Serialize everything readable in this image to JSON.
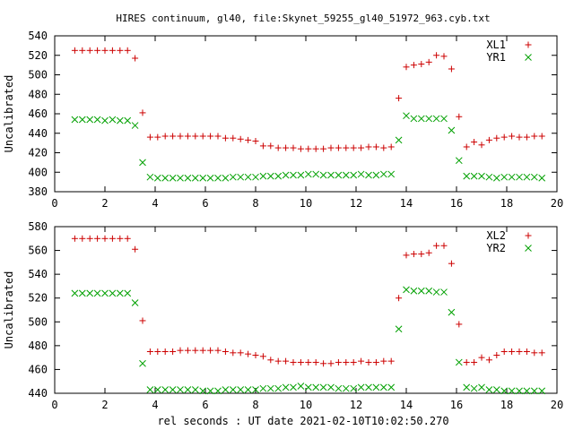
{
  "chart_data": [
    {
      "type": "scatter",
      "title": "HIRES continuum, gl40, file:Skynet_59255_gl40_51972_963.cyb.txt",
      "xlabel": "",
      "ylabel": "Uncalibrated",
      "xlim": [
        0,
        20
      ],
      "ylim": [
        380,
        540
      ],
      "xticks": [
        0,
        2,
        4,
        6,
        8,
        10,
        12,
        14,
        16,
        18,
        20
      ],
      "yticks": [
        380,
        400,
        420,
        440,
        460,
        480,
        500,
        520,
        540
      ],
      "legend": "top-right",
      "series": [
        {
          "name": "XL1",
          "marker": "plus",
          "color": "#cc0000",
          "x": [
            0.8,
            1.1,
            1.4,
            1.7,
            2.0,
            2.3,
            2.6,
            2.9,
            3.2,
            3.5,
            3.8,
            4.1,
            4.4,
            4.7,
            5.0,
            5.3,
            5.6,
            5.9,
            6.2,
            6.5,
            6.8,
            7.1,
            7.4,
            7.7,
            8.0,
            8.3,
            8.6,
            8.9,
            9.2,
            9.5,
            9.8,
            10.1,
            10.4,
            10.7,
            11.0,
            11.3,
            11.6,
            11.9,
            12.2,
            12.5,
            12.8,
            13.1,
            13.4,
            13.7,
            14.0,
            14.3,
            14.6,
            14.9,
            15.2,
            15.5,
            15.8,
            16.1,
            16.4,
            16.7,
            17.0,
            17.3,
            17.6,
            17.9,
            18.2,
            18.5,
            18.8,
            19.1,
            19.4
          ],
          "y": [
            525,
            525,
            525,
            525,
            525,
            525,
            525,
            525,
            517,
            461,
            436,
            436,
            437,
            437,
            437,
            437,
            437,
            437,
            437,
            437,
            435,
            435,
            434,
            433,
            432,
            427,
            427,
            425,
            425,
            425,
            424,
            424,
            424,
            424,
            425,
            425,
            425,
            425,
            425,
            426,
            426,
            425,
            426,
            476,
            508,
            510,
            511,
            513,
            520,
            519,
            506,
            457,
            426,
            431,
            428,
            433,
            435,
            436,
            437,
            436,
            436,
            437,
            437
          ]
        },
        {
          "name": "YR1",
          "marker": "cross",
          "color": "#00a000",
          "x": [
            0.8,
            1.1,
            1.4,
            1.7,
            2.0,
            2.3,
            2.6,
            2.9,
            3.2,
            3.5,
            3.8,
            4.1,
            4.4,
            4.7,
            5.0,
            5.3,
            5.6,
            5.9,
            6.2,
            6.5,
            6.8,
            7.1,
            7.4,
            7.7,
            8.0,
            8.3,
            8.6,
            8.9,
            9.2,
            9.5,
            9.8,
            10.1,
            10.4,
            10.7,
            11.0,
            11.3,
            11.6,
            11.9,
            12.2,
            12.5,
            12.8,
            13.1,
            13.4,
            13.7,
            14.0,
            14.3,
            14.6,
            14.9,
            15.2,
            15.5,
            15.8,
            16.1,
            16.4,
            16.7,
            17.0,
            17.3,
            17.6,
            17.9,
            18.2,
            18.5,
            18.8,
            19.1,
            19.4
          ],
          "y": [
            454,
            454,
            454,
            454,
            453,
            454,
            453,
            453,
            448,
            410,
            395,
            394,
            394,
            394,
            394,
            394,
            394,
            394,
            394,
            394,
            394,
            395,
            395,
            395,
            395,
            396,
            396,
            396,
            397,
            397,
            397,
            398,
            398,
            397,
            397,
            397,
            397,
            397,
            398,
            397,
            397,
            398,
            398,
            433,
            458,
            455,
            455,
            455,
            455,
            455,
            443,
            412,
            396,
            396,
            396,
            395,
            394,
            395,
            395,
            395,
            395,
            395,
            394
          ]
        }
      ]
    },
    {
      "type": "scatter",
      "title": "",
      "xlabel": "rel seconds : UT date 2021-02-10T10:02:50.270",
      "ylabel": "Uncalibrated",
      "xlim": [
        0,
        20
      ],
      "ylim": [
        440,
        580
      ],
      "xticks": [
        0,
        2,
        4,
        6,
        8,
        10,
        12,
        14,
        16,
        18,
        20
      ],
      "yticks": [
        440,
        460,
        480,
        500,
        520,
        540,
        560,
        580
      ],
      "legend": "top-right",
      "series": [
        {
          "name": "XL2",
          "marker": "plus",
          "color": "#cc0000",
          "x": [
            0.8,
            1.1,
            1.4,
            1.7,
            2.0,
            2.3,
            2.6,
            2.9,
            3.2,
            3.5,
            3.8,
            4.1,
            4.4,
            4.7,
            5.0,
            5.3,
            5.6,
            5.9,
            6.2,
            6.5,
            6.8,
            7.1,
            7.4,
            7.7,
            8.0,
            8.3,
            8.6,
            8.9,
            9.2,
            9.5,
            9.8,
            10.1,
            10.4,
            10.7,
            11.0,
            11.3,
            11.6,
            11.9,
            12.2,
            12.5,
            12.8,
            13.1,
            13.4,
            13.7,
            14.0,
            14.3,
            14.6,
            14.9,
            15.2,
            15.5,
            15.8,
            16.1,
            16.4,
            16.7,
            17.0,
            17.3,
            17.6,
            17.9,
            18.2,
            18.5,
            18.8,
            19.1,
            19.4
          ],
          "y": [
            570,
            570,
            570,
            570,
            570,
            570,
            570,
            570,
            561,
            501,
            475,
            475,
            475,
            475,
            476,
            476,
            476,
            476,
            476,
            476,
            475,
            474,
            474,
            473,
            472,
            471,
            468,
            467,
            467,
            466,
            466,
            466,
            466,
            465,
            465,
            466,
            466,
            466,
            467,
            466,
            466,
            467,
            467,
            520,
            556,
            557,
            557,
            558,
            564,
            564,
            549,
            498,
            466,
            466,
            470,
            468,
            472,
            475,
            475,
            475,
            475,
            474,
            474
          ]
        },
        {
          "name": "YR2",
          "marker": "cross",
          "color": "#00a000",
          "x": [
            0.8,
            1.1,
            1.4,
            1.7,
            2.0,
            2.3,
            2.6,
            2.9,
            3.2,
            3.5,
            3.8,
            4.1,
            4.4,
            4.7,
            5.0,
            5.3,
            5.6,
            5.9,
            6.2,
            6.5,
            6.8,
            7.1,
            7.4,
            7.7,
            8.0,
            8.3,
            8.6,
            8.9,
            9.2,
            9.5,
            9.8,
            10.1,
            10.4,
            10.7,
            11.0,
            11.3,
            11.6,
            11.9,
            12.2,
            12.5,
            12.8,
            13.1,
            13.4,
            13.7,
            14.0,
            14.3,
            14.6,
            14.9,
            15.2,
            15.5,
            15.8,
            16.1,
            16.4,
            16.7,
            17.0,
            17.3,
            17.6,
            17.9,
            18.2,
            18.5,
            18.8,
            19.1,
            19.4
          ],
          "y": [
            524,
            524,
            524,
            524,
            524,
            524,
            524,
            524,
            516,
            465,
            443,
            443,
            443,
            443,
            443,
            443,
            443,
            442,
            442,
            442,
            443,
            443,
            443,
            443,
            443,
            444,
            444,
            444,
            445,
            445,
            446,
            445,
            445,
            445,
            445,
            444,
            444,
            444,
            445,
            445,
            445,
            445,
            445,
            494,
            527,
            526,
            526,
            526,
            525,
            525,
            508,
            466,
            445,
            444,
            445,
            443,
            443,
            442,
            442,
            442,
            442,
            442,
            442
          ]
        }
      ]
    }
  ]
}
